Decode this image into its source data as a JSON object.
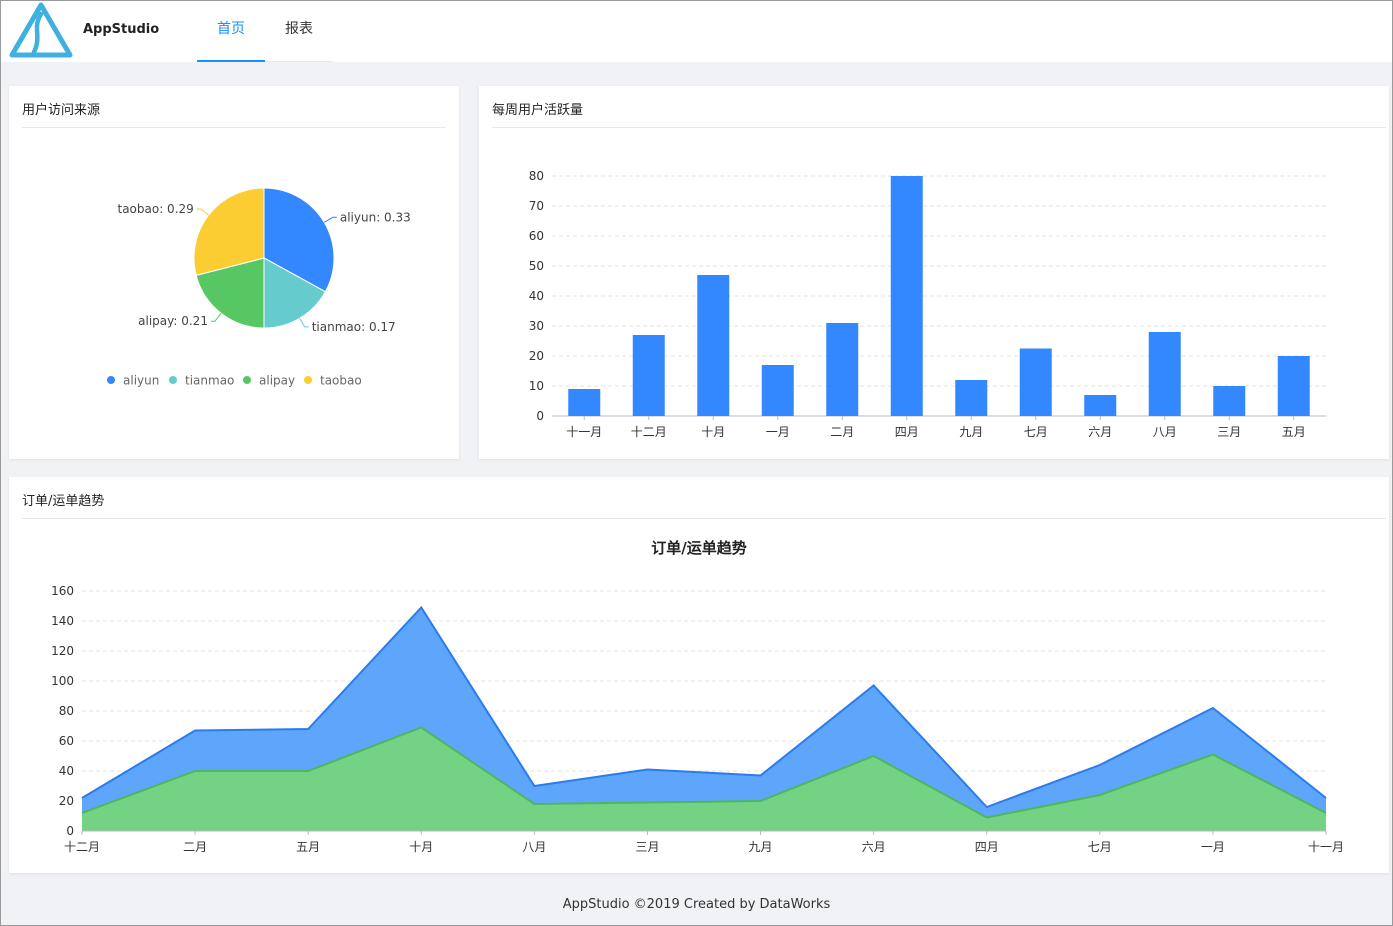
{
  "header": {
    "app_name": "AppStudio",
    "tabs": [
      {
        "label": "首页",
        "active": true
      },
      {
        "label": "报表",
        "active": false
      }
    ]
  },
  "colors": {
    "blue": "#3388ff",
    "cyan": "#65cbcc",
    "green": "#57c764",
    "yellow": "#fbcd33",
    "accent": "#1890ff"
  },
  "pie_card": {
    "title": "用户访问来源",
    "chart_data": {
      "type": "pie",
      "slices": [
        {
          "name": "aliyun",
          "value": 0.33,
          "label": "aliyun: 0.33",
          "color": "#3388ff"
        },
        {
          "name": "tianmao",
          "value": 0.17,
          "label": "tianmao: 0.17",
          "color": "#65cbcc"
        },
        {
          "name": "alipay",
          "value": 0.21,
          "label": "alipay: 0.21",
          "color": "#57c764"
        },
        {
          "name": "taobao",
          "value": 0.29,
          "label": "taobao: 0.29",
          "color": "#fbcd33"
        }
      ],
      "legend": [
        "aliyun",
        "tianmao",
        "alipay",
        "taobao"
      ],
      "legend_position": "bottom"
    }
  },
  "bar_card": {
    "title": "每周用户活跃量",
    "chart_data": {
      "type": "bar",
      "categories": [
        "十一月",
        "十二月",
        "十月",
        "一月",
        "二月",
        "四月",
        "九月",
        "七月",
        "六月",
        "八月",
        "三月",
        "五月"
      ],
      "values": [
        9,
        27,
        47,
        17,
        31,
        80,
        12,
        22.5,
        7,
        28,
        10,
        20
      ],
      "ylim": [
        0,
        80
      ],
      "yticks": [
        0,
        10,
        20,
        30,
        40,
        50,
        60,
        70,
        80
      ],
      "grid": true,
      "color": "#3388ff"
    }
  },
  "area_card": {
    "title": "订单/运单趋势",
    "chart_data": {
      "type": "area",
      "title": "订单/运单趋势",
      "categories": [
        "十二月",
        "二月",
        "五月",
        "十月",
        "八月",
        "三月",
        "九月",
        "六月",
        "四月",
        "七月",
        "一月",
        "十一月"
      ],
      "series": [
        {
          "values": [
            22,
            67,
            68,
            149,
            30,
            41,
            37,
            97,
            16,
            44,
            82,
            22
          ],
          "color": "#3388ff"
        },
        {
          "values": [
            12,
            40,
            40,
            69,
            18,
            19,
            20,
            50,
            9,
            24,
            51,
            12
          ],
          "color": "#57c764"
        }
      ],
      "ylim": [
        0,
        160
      ],
      "yticks": [
        0,
        20,
        40,
        60,
        80,
        100,
        120,
        140,
        160
      ],
      "grid": true
    }
  },
  "footer": {
    "text": "AppStudio ©2019 Created by DataWorks"
  }
}
